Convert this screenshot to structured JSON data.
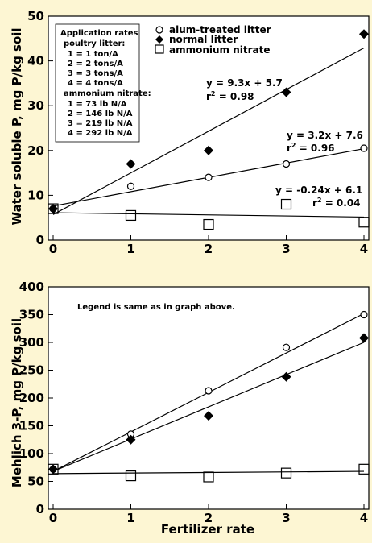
{
  "colors": {
    "background": "#fdf6d3",
    "plot_background": "#ffffff",
    "ink": "#000000"
  },
  "x_axis_label": "Fertilizer rate",
  "legend": {
    "entries": [
      {
        "marker": "circle-open",
        "label": "alum-treated litter"
      },
      {
        "marker": "diamond-filled",
        "label": "normal litter"
      },
      {
        "marker": "square-open",
        "label": "ammonium nitrate"
      }
    ]
  },
  "rates_note": {
    "lines": [
      "Application rates",
      "poultry litter:",
      "1 = 1 ton/A",
      "2 = 2 tons/A",
      "3 = 3 tons/A",
      "4 = 4 tons/A",
      "ammonium nitrate:",
      "1 = 73 lb N/A",
      "2 = 146 lb N/A",
      "3 = 219 lb N/A",
      "4 = 292 lb N/A"
    ]
  },
  "lower_note": "Legend is same as in graph above.",
  "chart_data": [
    {
      "type": "scatter",
      "ylabel": "Water soluble P, mg P/kg soil",
      "xlabel": "",
      "xlim": [
        0,
        4
      ],
      "ylim": [
        0,
        50
      ],
      "xticks": [
        "0",
        "1",
        "2",
        "3",
        "4"
      ],
      "yticks": [
        "0",
        "10",
        "20",
        "30",
        "40",
        "50"
      ],
      "grid": false,
      "legend_position": "top-right",
      "series": [
        {
          "name": "alum-treated litter",
          "marker": "circle-open",
          "x": [
            0,
            1,
            2,
            3,
            4
          ],
          "y": [
            7,
            12,
            14,
            17,
            20.5
          ],
          "fit": {
            "slope": 3.2,
            "intercept": 7.6,
            "equation": "y = 3.2x + 7.6",
            "r2_value": "= 0.96"
          }
        },
        {
          "name": "normal litter",
          "marker": "diamond-filled",
          "x": [
            0,
            1,
            2,
            3,
            4
          ],
          "y": [
            7,
            17,
            20,
            33,
            46
          ],
          "fit": {
            "slope": 9.3,
            "intercept": 5.7,
            "equation": "y = 9.3x + 5.7",
            "r2_value": "= 0.98"
          }
        },
        {
          "name": "ammonium nitrate",
          "marker": "square-open",
          "x": [
            0,
            1,
            2,
            3,
            4
          ],
          "y": [
            7,
            5.5,
            3.5,
            8,
            4
          ],
          "fit": {
            "slope": -0.24,
            "intercept": 6.1,
            "equation": "y =  -0.24x + 6.1",
            "r2_value": "= 0.04"
          }
        }
      ]
    },
    {
      "type": "scatter",
      "ylabel": "Mehlich 3-P, mg P/kg soil",
      "xlabel": "Fertilizer rate",
      "xlim": [
        0,
        4
      ],
      "ylim": [
        0,
        400
      ],
      "xticks": [
        "0",
        "1",
        "2",
        "3",
        "4"
      ],
      "yticks": [
        "0",
        "50",
        "100",
        "150",
        "200",
        "250",
        "300",
        "350",
        "400"
      ],
      "grid": false,
      "series": [
        {
          "name": "alum-treated litter",
          "marker": "circle-open",
          "x": [
            0,
            1,
            2,
            3,
            4
          ],
          "y": [
            72,
            135,
            213,
            291,
            350
          ],
          "fit": {
            "slope": 71,
            "intercept": 68
          }
        },
        {
          "name": "normal litter",
          "marker": "diamond-filled",
          "x": [
            0,
            1,
            2,
            3,
            4
          ],
          "y": [
            72,
            125,
            168,
            238,
            308
          ],
          "fit": {
            "slope": 58,
            "intercept": 68
          }
        },
        {
          "name": "ammonium nitrate",
          "marker": "square-open",
          "x": [
            0,
            1,
            2,
            3,
            4
          ],
          "y": [
            72,
            60,
            58,
            65,
            72
          ],
          "fit": {
            "slope": 1,
            "intercept": 64
          }
        }
      ]
    }
  ]
}
